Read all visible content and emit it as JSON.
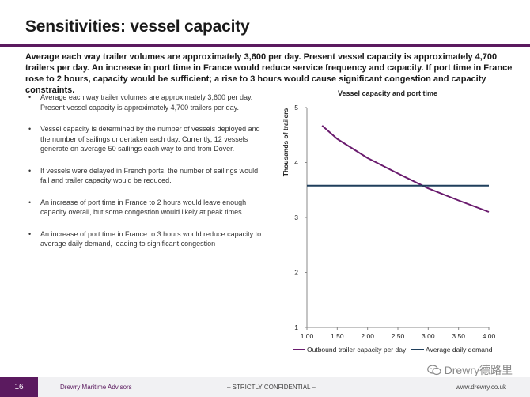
{
  "page": {
    "title": "Sensitivities: vessel capacity",
    "summary": "Average each way trailer volumes are approximately 3,600 per day. Present vessel capacity is approximately 4,700 trailers per day. An increase in port time in France would reduce service frequency and capacity. If port time in France rose to 2 hours, capacity would be sufficient; a rise to 3 hours would cause significant congestion and capacity constraints.",
    "bullets": [
      "Average each way trailer volumes are approximately 3,600 per day. Present vessel capacity is approximately 4,700 trailers per day.",
      "Vessel capacity is determined by the number of vessels deployed and the number of sailings undertaken each day. Currently, 12 vessels generate on average 50 sailings each way to and from Dover.",
      "If vessels were delayed in French ports, the number of sailings would fall and trailer capacity would be reduced.",
      "An increase of port time in France to 2 hours would leave enough capacity overall, but some congestion would likely at peak times.",
      "An increase of port time in France to 3 hours would reduce capacity to average daily demand, leading to significant congestion"
    ],
    "bullet_marker": "•"
  },
  "footer": {
    "page_number": "16",
    "company": "Drewry Maritime Advisors",
    "confidential": "– STRICTLY CONFIDENTIAL –",
    "url": "www.drewry.co.uk"
  },
  "watermark": {
    "text": "Drewry德路里",
    "icon": "wechat-icon"
  },
  "colors": {
    "brand": "#5b1a5f",
    "series_capacity": "#6a1b6e",
    "series_demand": "#1f3f5c"
  },
  "chart_data": {
    "type": "line",
    "title": "Vessel capacity and port time",
    "xlabel": "",
    "ylabel": "Thousands of trailers",
    "xlim": [
      1.0,
      4.0
    ],
    "ylim": [
      1,
      5
    ],
    "x_ticks": [
      "1.00",
      "1.50",
      "2.00",
      "2.50",
      "3.00",
      "3.50",
      "4.00"
    ],
    "y_ticks": [
      "1",
      "2",
      "3",
      "4",
      "5"
    ],
    "grid": false,
    "legend_position": "bottom",
    "series": [
      {
        "name": "Outbound trailer capacity per day",
        "color": "#6a1b6e",
        "x": [
          1.25,
          1.5,
          2.0,
          2.5,
          3.0,
          3.5,
          4.0
        ],
        "y": [
          4.67,
          4.43,
          4.08,
          3.8,
          3.53,
          3.31,
          3.1
        ]
      },
      {
        "name": "Average daily demand",
        "color": "#1f3f5c",
        "x": [
          1.0,
          4.0
        ],
        "y": [
          3.58,
          3.58
        ]
      }
    ]
  }
}
